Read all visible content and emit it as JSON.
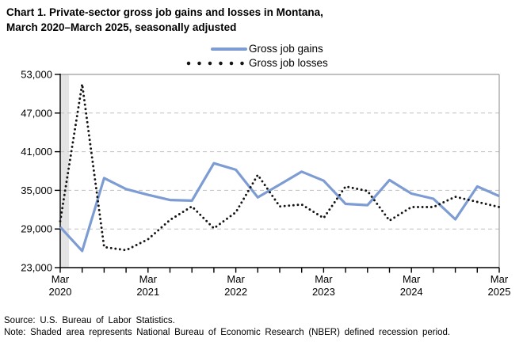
{
  "title": {
    "line1": "Chart 1. Private-sector gross job gains and losses in Montana,",
    "line2": "March 2020–March 2025, seasonally adjusted"
  },
  "legend": {
    "gains_label": "Gross job gains",
    "losses_label": "Gross job losses"
  },
  "footer": {
    "source": "Source: U.S. Bureau of Labor Statistics.",
    "note": "Note: Shaded area represents National Bureau of Economic Research (NBER) defined recession period."
  },
  "chart_data": {
    "type": "line",
    "x": [
      "Mar 2020",
      "Jun 2020",
      "Sep 2020",
      "Dec 2020",
      "Mar 2021",
      "Jun 2021",
      "Sep 2021",
      "Dec 2021",
      "Mar 2022",
      "Jun 2022",
      "Sep 2022",
      "Dec 2022",
      "Mar 2023",
      "Jun 2023",
      "Sep 2023",
      "Dec 2023",
      "Mar 2024",
      "Jun 2024",
      "Sep 2024",
      "Dec 2024",
      "Mar 2025"
    ],
    "series": [
      {
        "name": "Gross job gains",
        "style": "solid",
        "color": "#7D9CD3",
        "values": [
          29300,
          25600,
          36900,
          35200,
          34300,
          33500,
          33400,
          39200,
          38200,
          33900,
          35900,
          37900,
          36500,
          32900,
          32700,
          36600,
          34500,
          33700,
          30500,
          35600,
          34100
        ]
      },
      {
        "name": "Gross job losses",
        "style": "dotted",
        "color": "#141414",
        "values": [
          30200,
          51500,
          26200,
          25700,
          27400,
          30400,
          32500,
          29100,
          31600,
          37400,
          32500,
          32800,
          30700,
          35600,
          34900,
          30300,
          32400,
          32400,
          34000,
          33200,
          32400
        ]
      }
    ],
    "ylim": [
      23000,
      53000
    ],
    "ytick_step": 6000,
    "ytick_labels": [
      "23,000",
      "29,000",
      "35,000",
      "41,000",
      "47,000",
      "53,000"
    ],
    "xtick_major": [
      {
        "month": "Mar",
        "year": "2020",
        "index": 0
      },
      {
        "month": "Mar",
        "year": "2021",
        "index": 4
      },
      {
        "month": "Mar",
        "year": "2022",
        "index": 8
      },
      {
        "month": "Mar",
        "year": "2023",
        "index": 12
      },
      {
        "month": "Mar",
        "year": "2024",
        "index": 16
      },
      {
        "month": "Mar",
        "year": "2025",
        "index": 20
      }
    ],
    "grid": "horizontal-dashed",
    "grid_color": "#C0C0C0",
    "frame_color": "#9C9C9C",
    "axis_color": "#000000",
    "shaded_region": {
      "label": "NBER recession period",
      "from_index": 0,
      "to_index": 0.38,
      "color": "#E4E4E4"
    }
  }
}
